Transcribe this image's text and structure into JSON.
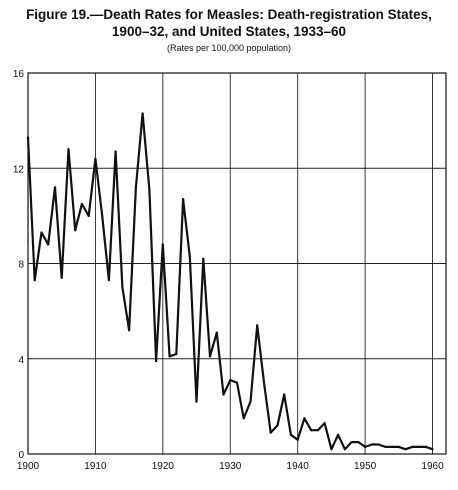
{
  "title_line1": "Figure 19.—Death Rates for Measles: Death-registration States,",
  "title_line2": "1900–32, and United States, 1933–60",
  "subtitle": "(Rates per 100,000 population)",
  "chart_data": {
    "type": "line",
    "title": "Figure 19.—Death Rates for Measles: Death-registration States, 1900–32, and United States, 1933–60",
    "subtitle": "(Rates per 100,000 population)",
    "xlabel": "",
    "ylabel": "",
    "xlim": [
      1900,
      1962
    ],
    "ylim": [
      0,
      16
    ],
    "grid": true,
    "x_ticks": [
      1900,
      1910,
      1920,
      1930,
      1940,
      1950,
      1960
    ],
    "y_ticks": [
      0,
      4,
      8,
      12,
      16
    ],
    "x": [
      1900,
      1901,
      1902,
      1903,
      1904,
      1905,
      1906,
      1907,
      1908,
      1909,
      1910,
      1911,
      1912,
      1913,
      1914,
      1915,
      1916,
      1917,
      1918,
      1919,
      1920,
      1921,
      1922,
      1923,
      1924,
      1925,
      1926,
      1927,
      1928,
      1929,
      1930,
      1931,
      1932,
      1933,
      1934,
      1935,
      1936,
      1937,
      1938,
      1939,
      1940,
      1941,
      1942,
      1943,
      1944,
      1945,
      1946,
      1947,
      1948,
      1949,
      1950,
      1951,
      1952,
      1953,
      1954,
      1955,
      1956,
      1957,
      1958,
      1959,
      1960
    ],
    "values": [
      13.3,
      7.3,
      9.3,
      8.8,
      11.2,
      7.4,
      12.8,
      9.4,
      10.5,
      10.0,
      12.4,
      10.0,
      7.3,
      12.7,
      7.0,
      5.2,
      11.2,
      14.3,
      11.1,
      3.9,
      8.8,
      4.1,
      4.2,
      10.7,
      8.3,
      2.2,
      8.2,
      4.1,
      5.1,
      2.5,
      3.1,
      3.0,
      1.5,
      2.2,
      5.4,
      3.0,
      0.9,
      1.2,
      2.5,
      0.8,
      0.6,
      1.5,
      1.0,
      1.0,
      1.3,
      0.2,
      0.8,
      0.2,
      0.5,
      0.5,
      0.3,
      0.4,
      0.4,
      0.3,
      0.3,
      0.3,
      0.2,
      0.3,
      0.3,
      0.3,
      0.2
    ]
  }
}
